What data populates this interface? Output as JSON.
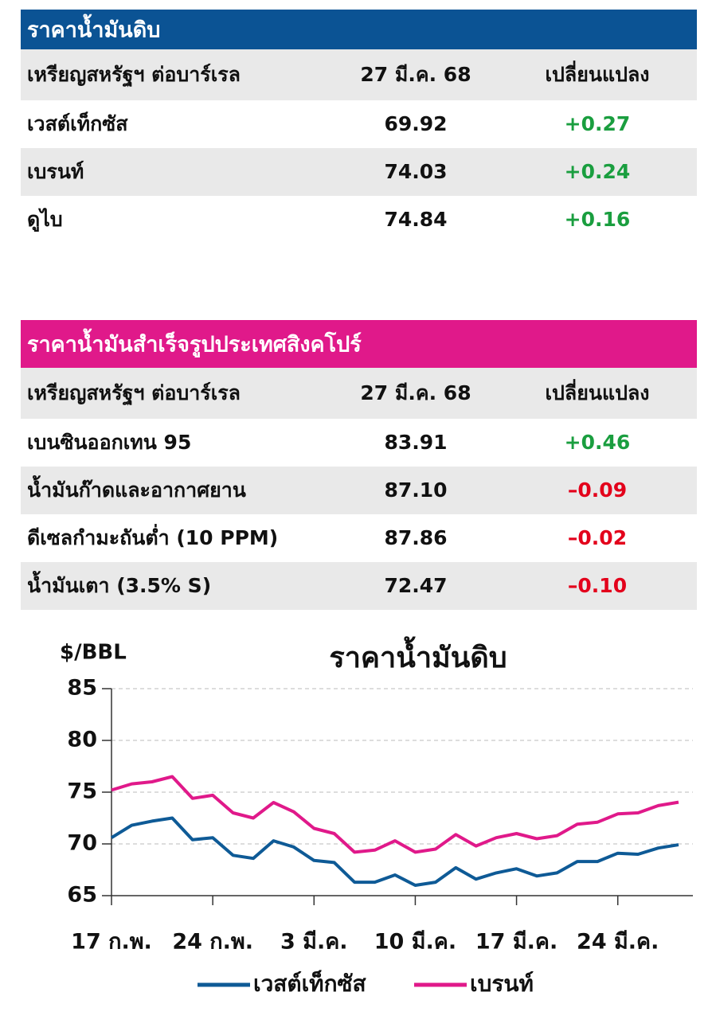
{
  "table1": {
    "title": "ราคาน้ำมันดิบ",
    "header": [
      "เหรียญสหรัฐฯ ต่อบาร์เรล",
      "27 มี.ค. 68",
      "เปลี่ยนแปลง"
    ],
    "rows": [
      [
        "เวสต์เท็กซัส",
        "69.92",
        "+0.27"
      ],
      [
        "เบรนท์",
        "74.03",
        "+0.24"
      ],
      [
        "ดูไบ",
        "74.84",
        "+0.16"
      ]
    ]
  },
  "table2": {
    "title": "ราคาน้ำมันสำเร็จรูปประเทศสิงคโปร์",
    "header": [
      "เหรียญสหรัฐฯ ต่อบาร์เรล",
      "27 มี.ค. 68",
      "เปลี่ยนแปลง"
    ],
    "rows": [
      [
        "เบนซินออกเทน 95",
        "83.91",
        "+0.46"
      ],
      [
        "น้ำมันก๊าดและอากาศยาน",
        "87.10",
        "–0.09"
      ],
      [
        "ดีเซลกำมะถันต่ำ (10 PPM)",
        "87.86",
        "–0.02"
      ],
      [
        "น้ำมันเตา (3.5% S)",
        "72.47",
        "–0.10"
      ]
    ]
  },
  "chart_data": {
    "type": "line",
    "title": "ราคาน้ำมันดิบ",
    "y_label": "$/BBL",
    "categories": [
      "17 ก.พ.",
      null,
      null,
      null,
      null,
      "24 ก.พ.",
      null,
      null,
      null,
      null,
      "3 มี.ค.",
      null,
      null,
      null,
      null,
      "10 มี.ค.",
      null,
      null,
      null,
      null,
      "17 มี.ค.",
      null,
      null,
      null,
      null,
      "24 มี.ค.",
      null,
      null,
      null
    ],
    "series": [
      {
        "name": "เวสต์เท็กซัส",
        "color": "#0e5a96",
        "values": [
          70.6,
          71.8,
          72.2,
          72.5,
          70.4,
          70.6,
          68.9,
          68.6,
          70.3,
          69.7,
          68.4,
          68.2,
          66.3,
          66.3,
          67.0,
          66.0,
          66.3,
          67.7,
          66.6,
          67.2,
          67.6,
          66.9,
          67.2,
          68.3,
          68.3,
          69.1,
          69.0,
          69.6,
          69.92
        ]
      },
      {
        "name": "เบรนท์",
        "color": "#e0198a",
        "values": [
          75.2,
          75.8,
          76.0,
          76.5,
          74.4,
          74.7,
          73.0,
          72.5,
          74.0,
          73.1,
          71.5,
          71.0,
          69.2,
          69.4,
          70.3,
          69.2,
          69.5,
          70.9,
          69.8,
          70.6,
          71.0,
          70.5,
          70.8,
          71.9,
          72.1,
          72.9,
          73.0,
          73.7,
          74.03
        ]
      }
    ],
    "ylim": [
      65,
      85
    ],
    "yticks": [
      65,
      70,
      75,
      80,
      85
    ],
    "grid": true,
    "legend": "bottom"
  }
}
